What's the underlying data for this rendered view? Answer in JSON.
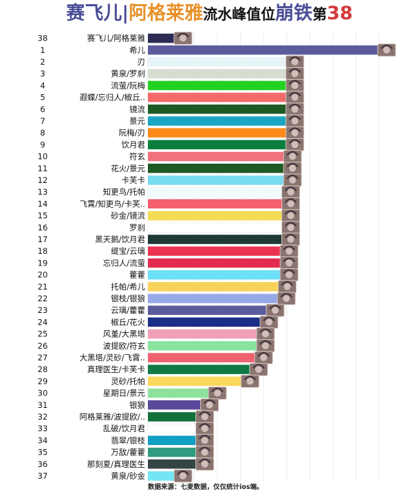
{
  "title": {
    "part1": "赛飞儿",
    "separator": "|",
    "part2": "阿格莱雅",
    "part3": "流水峰值位",
    "part4": "崩铁",
    "part5": "第",
    "part6": "38",
    "colors": {
      "part1": "#4a4e96",
      "separator": "#4a4e96",
      "part2": "#e8912a",
      "part3": "#111111",
      "part4": "#4a4e96",
      "part5": "#111111",
      "part6": "#d23a3a"
    }
  },
  "source_note": "数据来源：七麦数据，仅仅统计ios端。",
  "chart_data": {
    "type": "bar",
    "orientation": "horizontal",
    "x_range": [
      0,
      100
    ],
    "grid": true,
    "legend": "none",
    "rows": [
      {
        "rank": "38",
        "label": "赛飞儿/阿格莱雅",
        "value": 11.9,
        "color": "#2c2b55"
      },
      {
        "rank": "1",
        "label": "希儿",
        "value": 100,
        "color": "#5b5b9c"
      },
      {
        "rank": "2",
        "label": "刃",
        "value": 60.3,
        "color": "#e6f3f7"
      },
      {
        "rank": "3",
        "label": "黄泉/罗刹",
        "value": 60.3,
        "color": "#d5dcd0"
      },
      {
        "rank": "4",
        "label": "流萤/阮梅",
        "value": 60.3,
        "color": "#22d122"
      },
      {
        "rank": "5",
        "label": "遐蝶/忘归人/椒丘..",
        "value": 60.3,
        "color": "#f26a6a"
      },
      {
        "rank": "6",
        "label": "镜流",
        "value": 60.3,
        "color": "#1d5a24"
      },
      {
        "rank": "7",
        "label": "景元",
        "value": 60.3,
        "color": "#1aa5c2"
      },
      {
        "rank": "8",
        "label": "阮梅/刃",
        "value": 60.3,
        "color": "#ff8a1a"
      },
      {
        "rank": "9",
        "label": "饮月君",
        "value": 60.3,
        "color": "#0b7e3e"
      },
      {
        "rank": "10",
        "label": "符玄",
        "value": 59.3,
        "color": "#f0727d"
      },
      {
        "rank": "11",
        "label": "花火/景元",
        "value": 59.3,
        "color": "#1d5a24"
      },
      {
        "rank": "12",
        "label": "卡芙卡",
        "value": 59.3,
        "color": "#79dcee"
      },
      {
        "rank": "13",
        "label": "知更鸟/托帕",
        "value": 58.5,
        "color": "#f2fbfc"
      },
      {
        "rank": "14",
        "label": "飞霄/知更鸟/卡芙..",
        "value": 58.5,
        "color": "#f4606d"
      },
      {
        "rank": "15",
        "label": "砂金/镜流",
        "value": 58.5,
        "color": "#f5dc55"
      },
      {
        "rank": "16",
        "label": "罗刹",
        "value": 58.5,
        "color": "#ffffff"
      },
      {
        "rank": "17",
        "label": "黑天鹅/饮月君",
        "value": 58.5,
        "color": "#1d3a36"
      },
      {
        "rank": "18",
        "label": "缇宝/云璃",
        "value": 57.8,
        "color": "#ec3451"
      },
      {
        "rank": "19",
        "label": "忘归人/流萤",
        "value": 57.8,
        "color": "#e32b50"
      },
      {
        "rank": "20",
        "label": "藿藿",
        "value": 57.8,
        "color": "#6ee0f7"
      },
      {
        "rank": "21",
        "label": "托帕/希儿",
        "value": 57.0,
        "color": "#f8d35a"
      },
      {
        "rank": "22",
        "label": "银枝/银狼",
        "value": 56.6,
        "color": "#96a8e6"
      },
      {
        "rank": "23",
        "label": "云璃/藿藿",
        "value": 51.8,
        "color": "#5b5b9c"
      },
      {
        "rank": "24",
        "label": "椒丘/花火",
        "value": 49.1,
        "color": "#1b2f86"
      },
      {
        "rank": "25",
        "label": "风堇/大黑塔",
        "value": 47.6,
        "color": "#f0a0b6"
      },
      {
        "rank": "26",
        "label": "波提欧/符玄",
        "value": 47.6,
        "color": "#88e39e"
      },
      {
        "rank": "27",
        "label": "大黑塔/灵砂/飞霄..",
        "value": 46.8,
        "color": "#f0616f"
      },
      {
        "rank": "28",
        "label": "真理医生/卡芙卡",
        "value": 44.6,
        "color": "#0f7a46"
      },
      {
        "rank": "29",
        "label": "灵砂/托帕",
        "value": 40.9,
        "color": "#fbd85e"
      },
      {
        "rank": "30",
        "label": "星期日/景元",
        "value": 26.8,
        "color": "#8de39e"
      },
      {
        "rank": "31",
        "label": "银狼",
        "value": 23.4,
        "color": "#5b4a9c"
      },
      {
        "rank": "32",
        "label": "阿格莱雅/波提欧/..",
        "value": 21.3,
        "color": "#13703b"
      },
      {
        "rank": "33",
        "label": "乱破/饮月君",
        "value": 21.3,
        "color": "#ffffff"
      },
      {
        "rank": "34",
        "label": "翡翠/银枝",
        "value": 21.3,
        "color": "#0fa0c2"
      },
      {
        "rank": "35",
        "label": "万敌/藿藿",
        "value": 21.3,
        "color": "#2f9c80"
      },
      {
        "rank": "36",
        "label": "那刻夏/真理医生",
        "value": 21.3,
        "color": "#354545"
      },
      {
        "rank": "37",
        "label": "黄泉/砂金",
        "value": 11.9,
        "color": "#72e6f5"
      }
    ]
  }
}
